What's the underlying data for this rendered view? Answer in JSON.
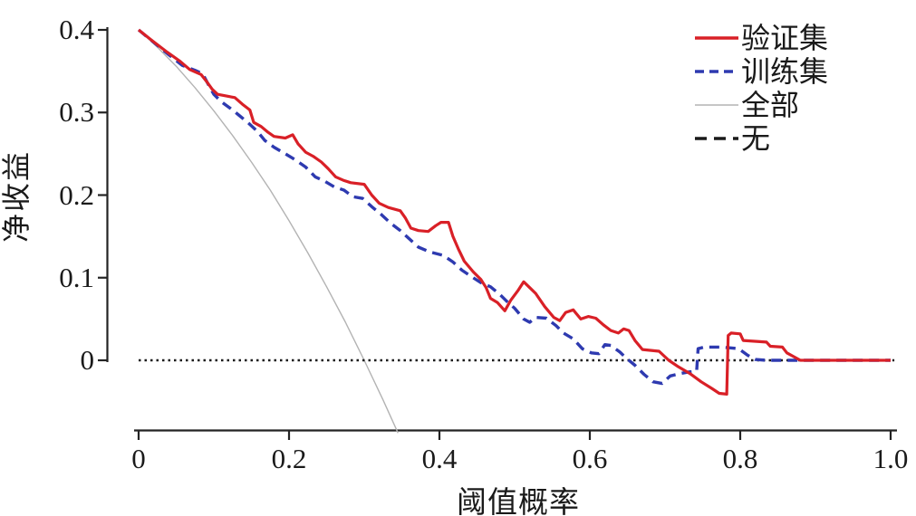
{
  "figure": {
    "background": "#ffffff",
    "text_color": "#1a1a1a",
    "axis_color": "#232323"
  },
  "chart_data": {
    "type": "line",
    "title": "",
    "xlabel": "阈值概率",
    "ylabel": "净收益",
    "grid": false,
    "legend_position": "top-right",
    "xaxis": {
      "range": [
        0,
        1.0
      ],
      "ticks": [
        {
          "value": 0.0,
          "label": "0"
        },
        {
          "value": 0.2,
          "label": "0.2"
        },
        {
          "value": 0.4,
          "label": "0.4"
        },
        {
          "value": 0.6,
          "label": "0.6"
        },
        {
          "value": 0.8,
          "label": "0.8"
        },
        {
          "value": 1.0,
          "label": "1.0"
        }
      ]
    },
    "yaxis": {
      "range": [
        0,
        0.4
      ],
      "ticks": [
        {
          "value": 0.0,
          "label": "0"
        },
        {
          "value": 0.1,
          "label": "0.1"
        },
        {
          "value": 0.2,
          "label": "0.2"
        },
        {
          "value": 0.3,
          "label": "0.3"
        },
        {
          "value": 0.4,
          "label": "0.4"
        }
      ]
    },
    "series": [
      {
        "name": "验证集",
        "color": "#d92027",
        "width": 3.2,
        "dash": "",
        "legend_dash": "",
        "points": [
          [
            0.0,
            0.4
          ],
          [
            0.018,
            0.387
          ],
          [
            0.038,
            0.373
          ],
          [
            0.055,
            0.362
          ],
          [
            0.068,
            0.352
          ],
          [
            0.083,
            0.346
          ],
          [
            0.09,
            0.338
          ],
          [
            0.098,
            0.328
          ],
          [
            0.105,
            0.322
          ],
          [
            0.128,
            0.318
          ],
          [
            0.138,
            0.31
          ],
          [
            0.148,
            0.303
          ],
          [
            0.153,
            0.288
          ],
          [
            0.163,
            0.283
          ],
          [
            0.172,
            0.276
          ],
          [
            0.18,
            0.271
          ],
          [
            0.195,
            0.269
          ],
          [
            0.205,
            0.273
          ],
          [
            0.212,
            0.262
          ],
          [
            0.222,
            0.252
          ],
          [
            0.232,
            0.247
          ],
          [
            0.243,
            0.24
          ],
          [
            0.252,
            0.232
          ],
          [
            0.262,
            0.222
          ],
          [
            0.272,
            0.218
          ],
          [
            0.282,
            0.215
          ],
          [
            0.3,
            0.213
          ],
          [
            0.31,
            0.2
          ],
          [
            0.32,
            0.19
          ],
          [
            0.332,
            0.185
          ],
          [
            0.348,
            0.181
          ],
          [
            0.355,
            0.172
          ],
          [
            0.362,
            0.16
          ],
          [
            0.372,
            0.157
          ],
          [
            0.385,
            0.156
          ],
          [
            0.395,
            0.163
          ],
          [
            0.402,
            0.167
          ],
          [
            0.412,
            0.167
          ],
          [
            0.418,
            0.15
          ],
          [
            0.425,
            0.135
          ],
          [
            0.433,
            0.12
          ],
          [
            0.445,
            0.107
          ],
          [
            0.455,
            0.098
          ],
          [
            0.462,
            0.088
          ],
          [
            0.468,
            0.075
          ],
          [
            0.477,
            0.07
          ],
          [
            0.487,
            0.06
          ],
          [
            0.495,
            0.073
          ],
          [
            0.505,
            0.085
          ],
          [
            0.512,
            0.095
          ],
          [
            0.52,
            0.088
          ],
          [
            0.528,
            0.081
          ],
          [
            0.54,
            0.065
          ],
          [
            0.552,
            0.052
          ],
          [
            0.56,
            0.048
          ],
          [
            0.568,
            0.058
          ],
          [
            0.578,
            0.061
          ],
          [
            0.588,
            0.05
          ],
          [
            0.598,
            0.053
          ],
          [
            0.608,
            0.051
          ],
          [
            0.618,
            0.043
          ],
          [
            0.628,
            0.036
          ],
          [
            0.638,
            0.033
          ],
          [
            0.645,
            0.038
          ],
          [
            0.652,
            0.036
          ],
          [
            0.66,
            0.024
          ],
          [
            0.67,
            0.013
          ],
          [
            0.692,
            0.011
          ],
          [
            0.705,
            0.0
          ],
          [
            0.718,
            -0.008
          ],
          [
            0.733,
            -0.016
          ],
          [
            0.748,
            -0.026
          ],
          [
            0.762,
            -0.034
          ],
          [
            0.772,
            -0.04
          ],
          [
            0.782,
            -0.041
          ],
          [
            0.784,
            0.03
          ],
          [
            0.788,
            0.033
          ],
          [
            0.8,
            0.032
          ],
          [
            0.804,
            0.024
          ],
          [
            0.835,
            0.022
          ],
          [
            0.84,
            0.017
          ],
          [
            0.856,
            0.016
          ],
          [
            0.862,
            0.009
          ],
          [
            0.872,
            0.004
          ],
          [
            0.88,
            0.0
          ],
          [
            1.0,
            0.0
          ]
        ]
      },
      {
        "name": "训练集",
        "color": "#2e3ab0",
        "width": 3.4,
        "dash": "11 7",
        "legend_dash": "10 6",
        "points": [
          [
            0.0,
            0.4
          ],
          [
            0.02,
            0.385
          ],
          [
            0.04,
            0.37
          ],
          [
            0.058,
            0.357
          ],
          [
            0.075,
            0.351
          ],
          [
            0.085,
            0.347
          ],
          [
            0.092,
            0.335
          ],
          [
            0.1,
            0.322
          ],
          [
            0.11,
            0.313
          ],
          [
            0.122,
            0.305
          ],
          [
            0.133,
            0.297
          ],
          [
            0.145,
            0.288
          ],
          [
            0.158,
            0.277
          ],
          [
            0.168,
            0.266
          ],
          [
            0.18,
            0.258
          ],
          [
            0.195,
            0.25
          ],
          [
            0.208,
            0.243
          ],
          [
            0.222,
            0.234
          ],
          [
            0.235,
            0.222
          ],
          [
            0.247,
            0.217
          ],
          [
            0.26,
            0.21
          ],
          [
            0.273,
            0.206
          ],
          [
            0.285,
            0.198
          ],
          [
            0.298,
            0.196
          ],
          [
            0.31,
            0.186
          ],
          [
            0.322,
            0.177
          ],
          [
            0.335,
            0.166
          ],
          [
            0.348,
            0.157
          ],
          [
            0.36,
            0.147
          ],
          [
            0.372,
            0.137
          ],
          [
            0.388,
            0.131
          ],
          [
            0.405,
            0.127
          ],
          [
            0.418,
            0.119
          ],
          [
            0.43,
            0.109
          ],
          [
            0.443,
            0.101
          ],
          [
            0.455,
            0.094
          ],
          [
            0.468,
            0.089
          ],
          [
            0.48,
            0.08
          ],
          [
            0.49,
            0.071
          ],
          [
            0.5,
            0.063
          ],
          [
            0.512,
            0.05
          ],
          [
            0.52,
            0.046
          ],
          [
            0.528,
            0.052
          ],
          [
            0.542,
            0.051
          ],
          [
            0.555,
            0.042
          ],
          [
            0.565,
            0.033
          ],
          [
            0.578,
            0.026
          ],
          [
            0.59,
            0.014
          ],
          [
            0.602,
            0.009
          ],
          [
            0.612,
            0.008
          ],
          [
            0.62,
            0.019
          ],
          [
            0.628,
            0.018
          ],
          [
            0.64,
            0.01
          ],
          [
            0.648,
            0.003
          ],
          [
            0.66,
            -0.006
          ],
          [
            0.672,
            -0.017
          ],
          [
            0.684,
            -0.026
          ],
          [
            0.696,
            -0.028
          ],
          [
            0.707,
            -0.019
          ],
          [
            0.72,
            -0.016
          ],
          [
            0.732,
            -0.014
          ],
          [
            0.742,
            -0.013
          ],
          [
            0.744,
            0.014
          ],
          [
            0.752,
            0.016
          ],
          [
            0.775,
            0.016
          ],
          [
            0.798,
            0.014
          ],
          [
            0.81,
            0.006
          ],
          [
            0.82,
            0.001
          ],
          [
            0.835,
            0.0
          ],
          [
            1.0,
            0.0
          ]
        ]
      },
      {
        "name": "全部",
        "color": "#b3b3b3",
        "width": 1.4,
        "dash": "",
        "legend_dash": "",
        "points": [
          [
            0.0,
            0.4
          ],
          [
            0.025,
            0.379
          ],
          [
            0.05,
            0.356
          ],
          [
            0.075,
            0.33
          ],
          [
            0.1,
            0.302
          ],
          [
            0.125,
            0.272
          ],
          [
            0.15,
            0.24
          ],
          [
            0.175,
            0.206
          ],
          [
            0.2,
            0.169
          ],
          [
            0.225,
            0.13
          ],
          [
            0.25,
            0.089
          ],
          [
            0.275,
            0.046
          ],
          [
            0.3,
            0.0
          ],
          [
            0.325,
            -0.048
          ],
          [
            0.345,
            -0.088
          ]
        ]
      },
      {
        "name": "无",
        "color": "#1a1a1a",
        "width": 2.4,
        "dash": "2.5 4",
        "legend_dash": "13 8",
        "points": [
          [
            0.0,
            0.0
          ],
          [
            1.005,
            0.0
          ]
        ]
      }
    ]
  }
}
